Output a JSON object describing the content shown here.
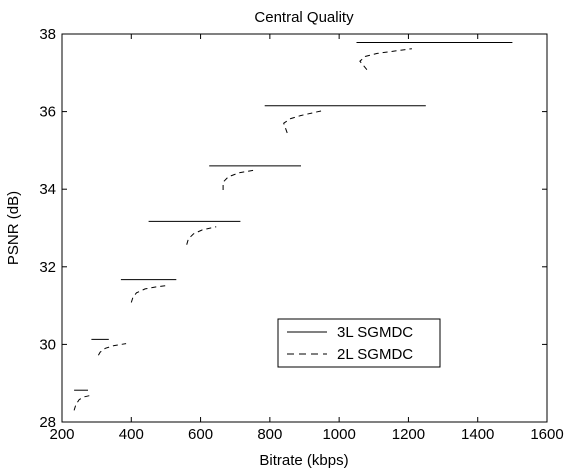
{
  "chart_data": {
    "type": "line",
    "title": "Central Quality",
    "xlabel": "Bitrate (kbps)",
    "ylabel": "PSNR (dB)",
    "xlim": [
      200,
      1600
    ],
    "ylim": [
      28,
      38
    ],
    "xticks": [
      200,
      400,
      600,
      800,
      1000,
      1200,
      1400,
      1600
    ],
    "yticks": [
      28,
      30,
      32,
      34,
      36,
      38
    ],
    "grid": false,
    "legend_position": "bottom-right",
    "series": [
      {
        "name": "3L SGMDC",
        "style": "solid",
        "segments": [
          [
            [
              235,
              28.82
            ],
            [
              275,
              28.82
            ]
          ],
          [
            [
              285,
              30.13
            ],
            [
              335,
              30.13
            ]
          ],
          [
            [
              370,
              31.67
            ],
            [
              530,
              31.67
            ]
          ],
          [
            [
              450,
              33.17
            ],
            [
              715,
              33.17
            ]
          ],
          [
            [
              625,
              34.6
            ],
            [
              890,
              34.6
            ]
          ],
          [
            [
              785,
              36.15
            ],
            [
              1250,
              36.15
            ]
          ],
          [
            [
              1050,
              37.78
            ],
            [
              1500,
              37.78
            ]
          ]
        ]
      },
      {
        "name": "2L SGMDC",
        "style": "dashed",
        "segments": [
          [
            [
              235,
              28.3
            ],
            [
              240,
              28.45
            ],
            [
              250,
              28.58
            ],
            [
              265,
              28.65
            ],
            [
              290,
              28.7
            ]
          ],
          [
            [
              305,
              29.72
            ],
            [
              310,
              29.8
            ],
            [
              325,
              29.9
            ],
            [
              350,
              29.97
            ],
            [
              385,
              30.02
            ]
          ],
          [
            [
              400,
              31.08
            ],
            [
              405,
              31.22
            ],
            [
              415,
              31.33
            ],
            [
              440,
              31.43
            ],
            [
              470,
              31.48
            ],
            [
              505,
              31.52
            ]
          ],
          [
            [
              560,
              32.57
            ],
            [
              565,
              32.72
            ],
            [
              580,
              32.85
            ],
            [
              605,
              32.95
            ],
            [
              645,
              33.03
            ]
          ],
          [
            [
              665,
              33.98
            ],
            [
              665,
              34.18
            ],
            [
              680,
              34.32
            ],
            [
              710,
              34.42
            ],
            [
              760,
              34.5
            ]
          ],
          [
            [
              850,
              35.45
            ],
            [
              840,
              35.7
            ],
            [
              860,
              35.82
            ],
            [
              890,
              35.9
            ],
            [
              950,
              36.02
            ]
          ],
          [
            [
              1080,
              37.08
            ],
            [
              1060,
              37.3
            ],
            [
              1075,
              37.42
            ],
            [
              1110,
              37.5
            ],
            [
              1210,
              37.62
            ]
          ]
        ]
      }
    ]
  }
}
